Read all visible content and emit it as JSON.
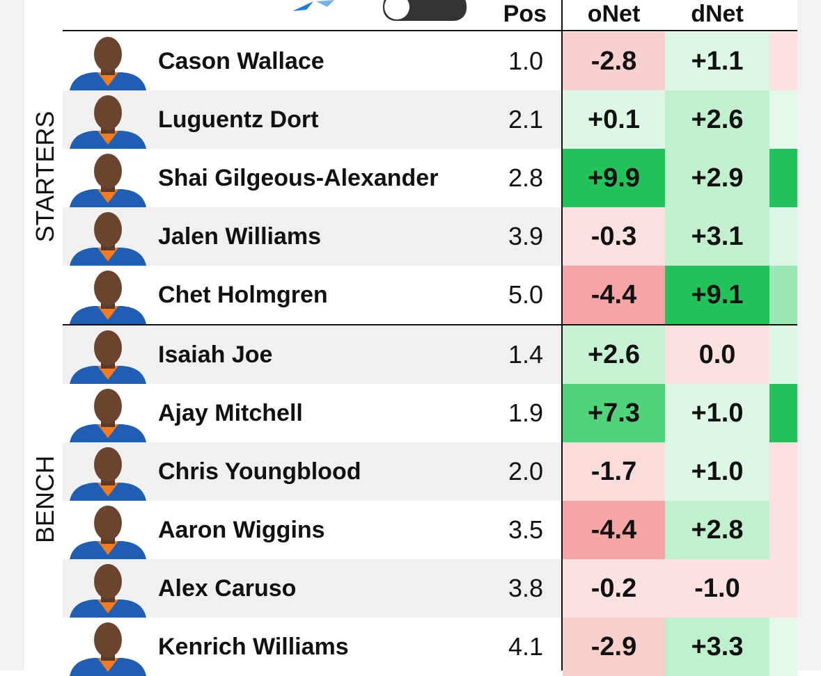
{
  "header": {
    "columns": [
      "Pos",
      "oNet",
      "dNet"
    ]
  },
  "groups": [
    {
      "label": "STARTERS",
      "rows": [
        {
          "name": "Cason Wallace",
          "pos": "1.0",
          "oNet": "-2.8",
          "oNetColor": "#f9d0cf",
          "dNet": "+1.1",
          "dNetColor": "#dcf7e3",
          "nextColor": "#fbe2e1"
        },
        {
          "name": "Luguentz Dort",
          "pos": "2.1",
          "oNet": "+0.1",
          "oNetColor": "#dcf7e3",
          "dNet": "+2.6",
          "dNetColor": "#c2f0cf",
          "nextColor": "#e3f8e8"
        },
        {
          "name": "Shai Gilgeous-Alexander",
          "pos": "2.8",
          "oNet": "+9.9",
          "oNetColor": "#22c35a",
          "dNet": "+2.9",
          "dNetColor": "#c2f0cf",
          "nextColor": "#22c35a"
        },
        {
          "name": "Jalen Williams",
          "pos": "3.9",
          "oNet": "-0.3",
          "oNetColor": "#fbe2e1",
          "dNet": "+3.1",
          "dNetColor": "#c2f0cf",
          "nextColor": "#dcf7e3"
        },
        {
          "name": "Chet Holmgren",
          "pos": "5.0",
          "oNet": "-4.4",
          "oNetColor": "#f5a5a3",
          "dNet": "+9.1",
          "dNetColor": "#22c35a",
          "nextColor": "#9ce8b4"
        }
      ]
    },
    {
      "label": "BENCH",
      "rows": [
        {
          "name": "Isaiah Joe",
          "pos": "1.4",
          "oNet": "+2.6",
          "oNetColor": "#c7f1d3",
          "dNet": "0.0",
          "dNetColor": "#fbe2e1",
          "nextColor": "#dcf7e3"
        },
        {
          "name": "Ajay Mitchell",
          "pos": "1.9",
          "oNet": "+7.3",
          "oNetColor": "#4fd37b",
          "dNet": "+1.0",
          "dNetColor": "#dcf7e3",
          "nextColor": "#22c35a"
        },
        {
          "name": "Chris Youngblood",
          "pos": "2.0",
          "oNet": "-1.7",
          "oNetColor": "#fbdcdb",
          "dNet": "+1.0",
          "dNetColor": "#dcf7e3",
          "nextColor": "#fbe2e1"
        },
        {
          "name": "Aaron Wiggins",
          "pos": "3.5",
          "oNet": "-4.4",
          "oNetColor": "#f5a5a3",
          "dNet": "+2.8",
          "dNetColor": "#c2f0cf",
          "nextColor": "#fbe2e1"
        },
        {
          "name": "Alex Caruso",
          "pos": "3.8",
          "oNet": "-0.2",
          "oNetColor": "#fbe2e1",
          "dNet": "-1.0",
          "dNetColor": "#fbe2e1",
          "nextColor": "#fbe2e1"
        },
        {
          "name": "Kenrich Williams",
          "pos": "4.1",
          "oNet": "-2.9",
          "oNetColor": "#f9cfce",
          "dNet": "+3.3",
          "dNetColor": "#bff0cc",
          "nextColor": "#e3f8e8"
        }
      ]
    }
  ]
}
